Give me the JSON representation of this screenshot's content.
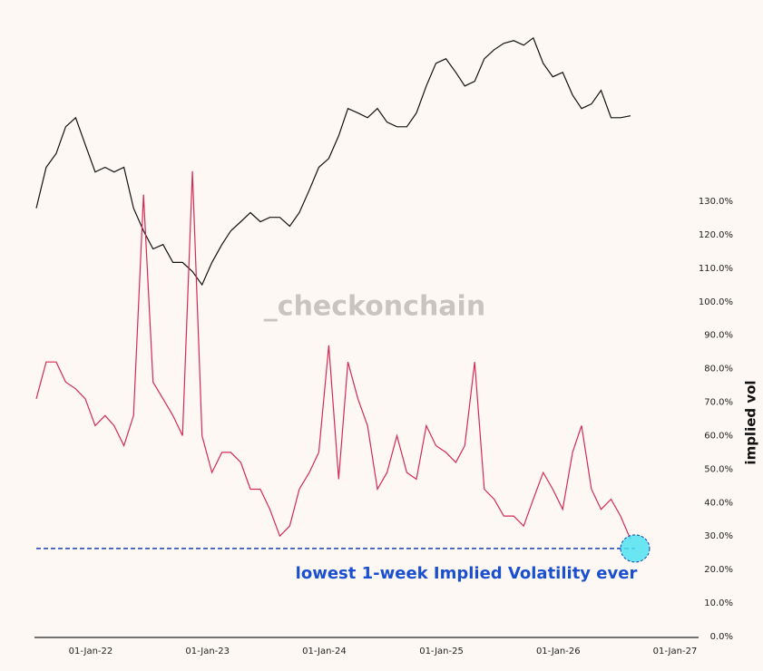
{
  "chart_data": {
    "type": "line",
    "watermark": "_checkonchain",
    "y_label": "implied vol",
    "annotation": "lowest 1-week Implied Volatility ever",
    "reference_line": 26.3,
    "x": [
      "2021-07-15",
      "2021-08-15",
      "2021-09-15",
      "2021-10-15",
      "2021-11-15",
      "2021-12-15",
      "2022-01-15",
      "2022-02-15",
      "2022-03-15",
      "2022-04-15",
      "2022-05-15",
      "2022-06-15",
      "2022-07-15",
      "2022-08-15",
      "2022-09-15",
      "2022-10-15",
      "2022-11-15",
      "2022-12-15",
      "2023-01-15",
      "2023-02-15",
      "2023-03-15",
      "2023-04-15",
      "2023-05-15",
      "2023-06-15",
      "2023-07-15",
      "2023-08-15",
      "2023-09-15",
      "2023-10-15",
      "2023-11-15",
      "2023-12-15",
      "2024-01-15",
      "2024-02-15",
      "2024-03-15",
      "2024-04-15",
      "2024-05-15",
      "2024-06-15",
      "2024-07-15",
      "2024-08-15",
      "2024-09-15",
      "2024-10-15",
      "2024-11-15",
      "2024-12-15",
      "2025-01-15",
      "2025-02-15",
      "2025-03-15",
      "2025-04-15",
      "2025-05-15",
      "2025-06-15",
      "2025-07-15",
      "2025-08-15",
      "2025-09-15",
      "2025-10-15",
      "2025-11-15",
      "2025-12-15",
      "2026-01-15",
      "2026-02-15",
      "2026-03-15",
      "2026-04-15",
      "2026-05-15",
      "2026-06-15",
      "2026-07-15",
      "2026-08-15"
    ],
    "series": [
      {
        "color": "#111111",
        "axis": "y2",
        "values": [
          30700,
          42900,
          48000,
          59800,
          64400,
          51600,
          41300,
          42900,
          41300,
          42900,
          30700,
          25500,
          22000,
          22800,
          19700,
          19700,
          18300,
          16400,
          19700,
          22800,
          25500,
          27500,
          29600,
          27500,
          28500,
          28500,
          26500,
          29600,
          35600,
          42900,
          46100,
          55500,
          69400,
          66900,
          64400,
          69400,
          62100,
          59800,
          59800,
          66900,
          83500,
          100500,
          104300,
          93300,
          83500,
          86700,
          104300,
          112300,
          118300,
          121000,
          116600,
          123700,
          100500,
          90000,
          93300,
          77500,
          69400,
          72000,
          80500,
          64400,
          64400,
          65400
        ]
      },
      {
        "color": "#d42a55",
        "values": [
          71,
          82,
          82,
          76,
          74,
          71,
          63,
          66,
          63,
          57,
          66,
          132,
          76,
          71,
          66,
          60,
          139,
          60,
          49,
          55,
          55,
          52,
          44,
          44,
          38,
          30,
          33,
          44,
          49,
          55,
          87,
          47,
          82,
          71,
          63,
          44,
          49,
          60,
          49,
          47,
          63,
          57,
          55,
          52,
          57,
          82,
          44,
          41,
          36,
          36,
          33,
          41,
          49,
          44,
          38,
          55,
          63,
          44,
          38,
          41,
          36,
          29
        ]
      }
    ],
    "ylim": [
      0,
      182
    ],
    "yticks": [
      {
        "value": 0,
        "label": "0.0%"
      },
      {
        "value": 10,
        "label": "10.0%"
      },
      {
        "value": 20,
        "label": "20.0%"
      },
      {
        "value": 30,
        "label": "30.0%"
      },
      {
        "value": 40,
        "label": "40.0%"
      },
      {
        "value": 50,
        "label": "50.0%"
      },
      {
        "value": 60,
        "label": "60.0%"
      },
      {
        "value": 70,
        "label": "70.0%"
      },
      {
        "value": 80,
        "label": "80.0%"
      },
      {
        "value": 90,
        "label": "90.0%"
      },
      {
        "value": 100,
        "label": "100.0%"
      },
      {
        "value": 110,
        "label": "110.0%"
      },
      {
        "value": 120,
        "label": "120.0%"
      },
      {
        "value": 130,
        "label": "130.0%"
      }
    ],
    "y2lim": [
      923,
      135000
    ],
    "y2log": true,
    "xlim": [
      "2021-07-15",
      "2027-01-01"
    ],
    "xticks": [
      {
        "value": "2022-01-01",
        "label": "01-Jan-22"
      },
      {
        "value": "2023-01-01",
        "label": "01-Jan-23"
      },
      {
        "value": "2024-01-01",
        "label": "01-Jan-24"
      },
      {
        "value": "2025-01-01",
        "label": "01-Jan-25"
      },
      {
        "value": "2026-01-01",
        "label": "01-Jan-26"
      },
      {
        "value": "2027-01-01",
        "label": "01-Jan-27"
      }
    ]
  }
}
